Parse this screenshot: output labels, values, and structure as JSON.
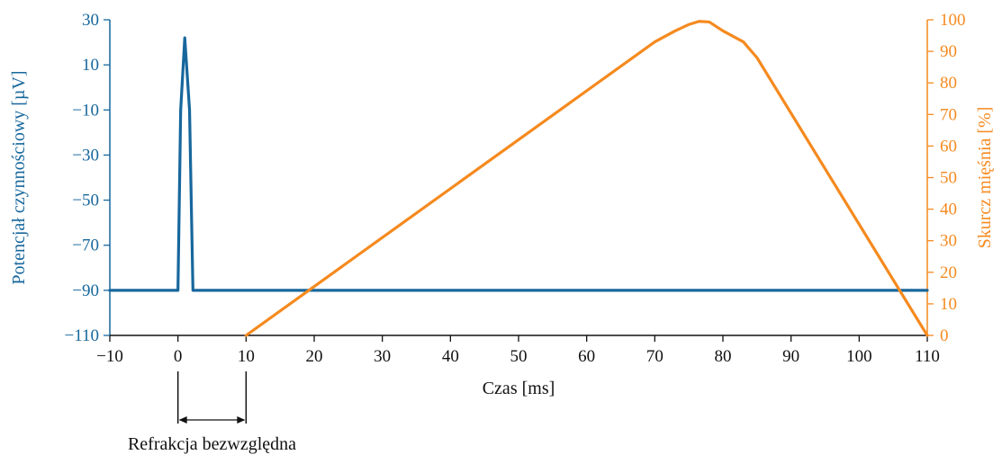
{
  "colors": {
    "left_series": "#17679c",
    "right_series": "#f58a1f",
    "axis": "#111111",
    "background": "#ffffff"
  },
  "chart_data": {
    "type": "line",
    "title": "",
    "xlabel": "Czas [ms]",
    "ylabel_left": "Potencjał czynnościowy [µV]",
    "ylabel_right": "Skurcz mięśnia [%]",
    "xlim": [
      -10,
      110
    ],
    "ylim_left": [
      -110,
      30
    ],
    "ylim_right": [
      0,
      100
    ],
    "x_ticks": [
      "−10",
      "0",
      "10",
      "20",
      "30",
      "40",
      "50",
      "60",
      "70",
      "80",
      "90",
      "100",
      "110"
    ],
    "y_left_ticks": [
      "30",
      "10",
      "−10",
      "−30",
      "−50",
      "−70",
      "−90",
      "−110"
    ],
    "y_right_ticks": [
      "100",
      "90",
      "80",
      "70",
      "60",
      "50",
      "40",
      "30",
      "20",
      "10",
      "0"
    ],
    "grid": false,
    "series": [
      {
        "axis": "left",
        "x": [
          -10,
          0,
          0.4,
          1,
          1.7,
          2.2,
          110
        ],
        "y": [
          -90,
          -90,
          -10,
          22,
          -10,
          -90,
          -90
        ]
      },
      {
        "axis": "right",
        "x": [
          10,
          70,
          73,
          75,
          76.5,
          78,
          80,
          83,
          85,
          110
        ],
        "y": [
          0,
          93,
          96.5,
          98.5,
          99.5,
          99.3,
          96.5,
          93,
          88,
          0
        ]
      }
    ],
    "annotations": [
      {
        "text": "Refrakcja bezwzględna",
        "x_start": 0,
        "x_end": 10
      }
    ]
  }
}
